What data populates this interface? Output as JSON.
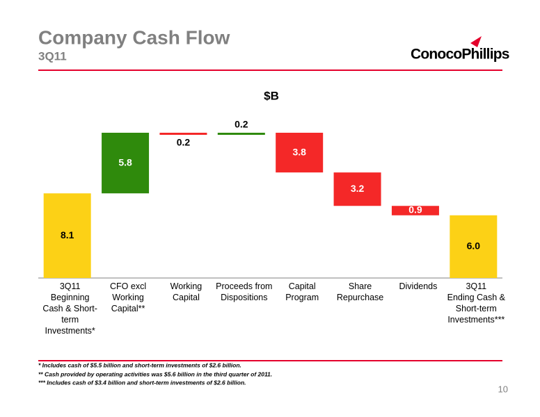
{
  "header": {
    "title": "Company Cash Flow",
    "subtitle": "3Q11",
    "logo": "ConocoPhillips"
  },
  "chart_data": {
    "type": "waterfall",
    "title": "$B",
    "categories": [
      [
        "3Q11",
        "Beginning",
        "Cash & Short-",
        "term",
        "Investments*"
      ],
      [
        "CFO  excl",
        "Working",
        "Capital**"
      ],
      [
        "Working",
        "Capital"
      ],
      [
        "Proceeds from",
        "Dispositions"
      ],
      [
        "Capital",
        "Program"
      ],
      [
        "Share",
        "Repurchase"
      ],
      [
        "Dividends"
      ],
      [
        "3Q11",
        "Ending Cash &",
        "Short-term",
        "Investments***"
      ]
    ],
    "values": [
      8.1,
      5.8,
      0.2,
      0.2,
      3.8,
      3.2,
      0.9,
      6.0
    ],
    "value_labels": [
      "8.1",
      "5.8",
      "0.2",
      "0.2",
      "3.8",
      "3.2",
      "0.9",
      "6.0"
    ],
    "measure": [
      "total",
      "increase",
      "decrease",
      "increase",
      "decrease",
      "decrease",
      "decrease",
      "total"
    ],
    "colors": {
      "total": "#fcd116",
      "increase": "#2f8a0c",
      "decrease": "#f42828"
    }
  },
  "footnotes": [
    "* Includes cash of $5.5 billion and short-term investments of $2.6 billion.",
    "** Cash provided by operating activities was $5.6 billion in the third quarter of 2011.",
    "*** Includes cash of $3.4 billion and short-term investments of $2.6 billion."
  ],
  "page_number": "10"
}
